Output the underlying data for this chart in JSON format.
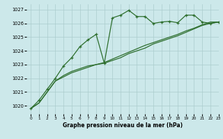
{
  "title": "Graphe pression niveau de la mer (hPa)",
  "bg_color": "#cce8ea",
  "grid_color": "#aacccc",
  "line_color": "#2d6e2d",
  "xlim": [
    -0.5,
    23
  ],
  "ylim": [
    1019.4,
    1027.4
  ],
  "yticks": [
    1020,
    1021,
    1022,
    1023,
    1024,
    1025,
    1026,
    1027
  ],
  "xticks": [
    0,
    1,
    2,
    3,
    4,
    5,
    6,
    7,
    8,
    9,
    10,
    11,
    12,
    13,
    14,
    15,
    16,
    17,
    18,
    19,
    20,
    21,
    22,
    23
  ],
  "series1_x": [
    0,
    1,
    2,
    3,
    4,
    5,
    6,
    7,
    8,
    9,
    10,
    11,
    12,
    13,
    14,
    15,
    16,
    17,
    18,
    19,
    20,
    21,
    22,
    23
  ],
  "series1_y": [
    1019.8,
    1020.4,
    1021.2,
    1022.0,
    1022.9,
    1023.5,
    1024.3,
    1024.8,
    1025.2,
    1023.1,
    1026.4,
    1026.6,
    1026.95,
    1026.5,
    1026.5,
    1026.0,
    1026.1,
    1026.15,
    1026.05,
    1026.6,
    1026.6,
    1026.1,
    1026.0,
    1026.1
  ],
  "series2_x": [
    0,
    1,
    2,
    3,
    4,
    5,
    6,
    7,
    8,
    9,
    10,
    11,
    12,
    13,
    14,
    15,
    16,
    17,
    18,
    19,
    20,
    21,
    22,
    23
  ],
  "series2_y": [
    1019.8,
    1020.2,
    1021.0,
    1021.8,
    1022.2,
    1022.5,
    1022.7,
    1022.9,
    1023.0,
    1023.1,
    1023.3,
    1023.5,
    1023.8,
    1024.0,
    1024.2,
    1024.5,
    1024.7,
    1024.9,
    1025.1,
    1025.35,
    1025.6,
    1025.85,
    1026.0,
    1026.1
  ],
  "series3_x": [
    0,
    1,
    2,
    3,
    4,
    5,
    6,
    7,
    8,
    9,
    10,
    11,
    12,
    13,
    14,
    15,
    16,
    17,
    18,
    19,
    20,
    21,
    22,
    23
  ],
  "series3_y": [
    1019.8,
    1020.2,
    1021.0,
    1021.8,
    1022.1,
    1022.4,
    1022.6,
    1022.8,
    1023.0,
    1023.15,
    1023.4,
    1023.65,
    1023.9,
    1024.15,
    1024.4,
    1024.6,
    1024.8,
    1025.0,
    1025.2,
    1025.45,
    1025.65,
    1025.9,
    1026.1,
    1026.1
  ]
}
